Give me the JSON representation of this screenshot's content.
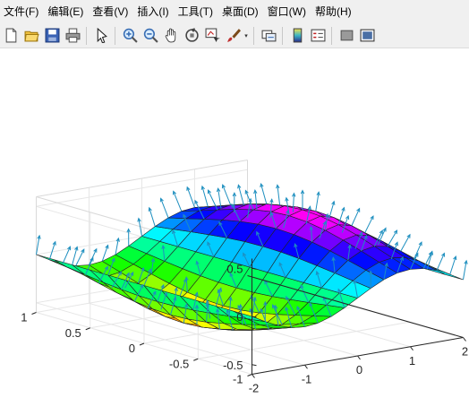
{
  "menu": [
    "文件(F)",
    "编辑(E)",
    "查看(V)",
    "插入(I)",
    "工具(T)",
    "桌面(D)",
    "窗口(W)",
    "帮助(H)"
  ],
  "toolbar": {
    "icons": [
      "new-file-icon",
      "open-folder-icon",
      "save-icon",
      "print-icon",
      "pointer-icon",
      "zoom-in-icon",
      "zoom-out-icon",
      "pan-hand-icon",
      "rotate-3d-icon",
      "data-cursor-icon",
      "brush-icon",
      "link-plot-icon",
      "colorbar-icon",
      "legend-icon",
      "hide-plot-tools-icon",
      "show-plot-tools-icon"
    ]
  },
  "colors": {
    "axes_line": "#262626",
    "grid": "#e6e6e6",
    "quiver": "#1e8fbf"
  },
  "chart_data": {
    "type": "surface",
    "description_function": "z = 0.5*sin(pi*x/2)*exp(-y^2)-like saddle surface with quiver normals",
    "x_range": [
      -2,
      2
    ],
    "y_range": [
      -1,
      1
    ],
    "z_range": [
      -0.6,
      0.6
    ],
    "x_ticks": [
      "-2",
      "-1",
      "0",
      "1",
      "2"
    ],
    "y_ticks": [
      "-1",
      "-0.5",
      "0",
      "0.5",
      "1"
    ],
    "z_ticks": [
      "-0.5",
      "0",
      "0.5"
    ],
    "grid": true,
    "colormap": "hsv",
    "has_quiver_normals": true
  }
}
